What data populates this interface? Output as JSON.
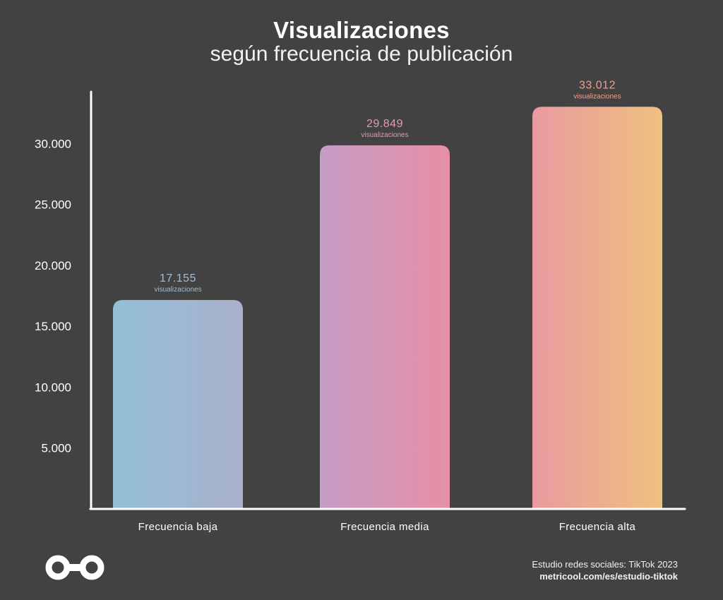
{
  "header": {
    "title": "Visualizaciones",
    "subtitle": "según frecuencia de publicación"
  },
  "chart_data": {
    "type": "bar",
    "title": "Visualizaciones",
    "subtitle": "según frecuencia de publicación",
    "categories": [
      "Frecuencia baja",
      "Frecuencia media",
      "Frecuencia alta"
    ],
    "values": [
      17155,
      29849,
      33012
    ],
    "value_labels": [
      "17.155",
      "29.849",
      "33.012"
    ],
    "value_unit_label": "visualizaciones",
    "yticks": [
      5000,
      10000,
      15000,
      20000,
      25000,
      30000
    ],
    "ytick_labels": [
      "5.000",
      "10.000",
      "15.000",
      "20.000",
      "25.000",
      "30.000"
    ],
    "ylim": [
      0,
      35000
    ],
    "grid": false,
    "bar_colors": [
      {
        "start": "#93c0d6",
        "end": "#aab0cc",
        "label": "#a9bccb"
      },
      {
        "start": "#c49cc4",
        "end": "#e68fa6",
        "label": "#e49ab2"
      },
      {
        "start": "#e99aa0",
        "end": "#efc07f",
        "label": "#eea08e"
      }
    ]
  },
  "footer": {
    "logo_icon": "metricool-infinity-icon",
    "source_line": "Estudio redes sociales: TikTok 2023",
    "url": "metricool.com/es/estudio-tiktok"
  }
}
